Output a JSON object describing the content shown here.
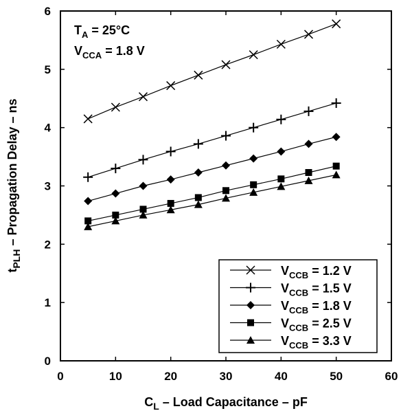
{
  "chart_data": {
    "type": "line",
    "xlabel": {
      "main": "C",
      "sub": "L",
      "rest": " – Load Capacitance – pF"
    },
    "ylabel": {
      "main": "t",
      "sub": "PLH",
      "rest": " – Propagation Delay – ns"
    },
    "xlim": [
      0,
      60
    ],
    "ylim": [
      0,
      6
    ],
    "xticks": [
      0,
      10,
      20,
      30,
      40,
      50,
      60
    ],
    "yticks": [
      0,
      1,
      2,
      3,
      4,
      5,
      6
    ],
    "grid": false,
    "legend_position": "bottom-right",
    "conditions": [
      {
        "main": "T",
        "sub": "A",
        "rest": " = 25°C"
      },
      {
        "main": "V",
        "sub": "CCA",
        "rest": " = 1.8 V"
      }
    ],
    "x": [
      5,
      10,
      15,
      20,
      25,
      30,
      35,
      40,
      45,
      50
    ],
    "series": [
      {
        "name": "VCCB = 1.2 V",
        "label_main": "V",
        "label_sub": "CCB",
        "label_rest": " = 1.2 V",
        "marker": "x",
        "values": [
          4.15,
          4.35,
          4.53,
          4.72,
          4.9,
          5.08,
          5.25,
          5.43,
          5.6,
          5.78
        ]
      },
      {
        "name": "VCCB = 1.5 V",
        "label_main": "V",
        "label_sub": "CCB",
        "label_rest": " = 1.5 V",
        "marker": "plus",
        "values": [
          3.15,
          3.3,
          3.45,
          3.59,
          3.72,
          3.86,
          4.0,
          4.14,
          4.28,
          4.42
        ]
      },
      {
        "name": "VCCB = 1.8 V",
        "label_main": "V",
        "label_sub": "CCB",
        "label_rest": " = 1.8 V",
        "marker": "diamond",
        "values": [
          2.74,
          2.87,
          3.0,
          3.11,
          3.23,
          3.35,
          3.47,
          3.59,
          3.72,
          3.84
        ]
      },
      {
        "name": "VCCB = 2.5 V",
        "label_main": "V",
        "label_sub": "CCB",
        "label_rest": " = 2.5 V",
        "marker": "square",
        "values": [
          2.4,
          2.5,
          2.6,
          2.7,
          2.8,
          2.92,
          3.02,
          3.12,
          3.23,
          3.34
        ]
      },
      {
        "name": "VCCB = 3.3 V",
        "label_main": "V",
        "label_sub": "CCB",
        "label_rest": " = 3.3 V",
        "marker": "triangle",
        "values": [
          2.3,
          2.4,
          2.5,
          2.59,
          2.68,
          2.79,
          2.89,
          2.99,
          3.09,
          3.19
        ]
      }
    ]
  }
}
